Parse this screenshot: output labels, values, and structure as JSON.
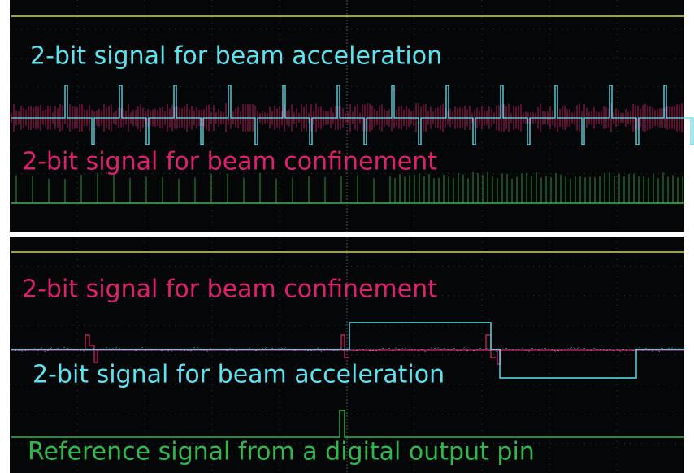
{
  "panels": [
    {
      "labels": [
        "2-bit signal for beam acceleration",
        "2-bit signal for beam confinement"
      ]
    },
    {
      "labels": [
        "2-bit signal for beam confinement",
        "2-bit signal for beam acceleration",
        "Reference signal from a digital output pin"
      ]
    }
  ]
}
